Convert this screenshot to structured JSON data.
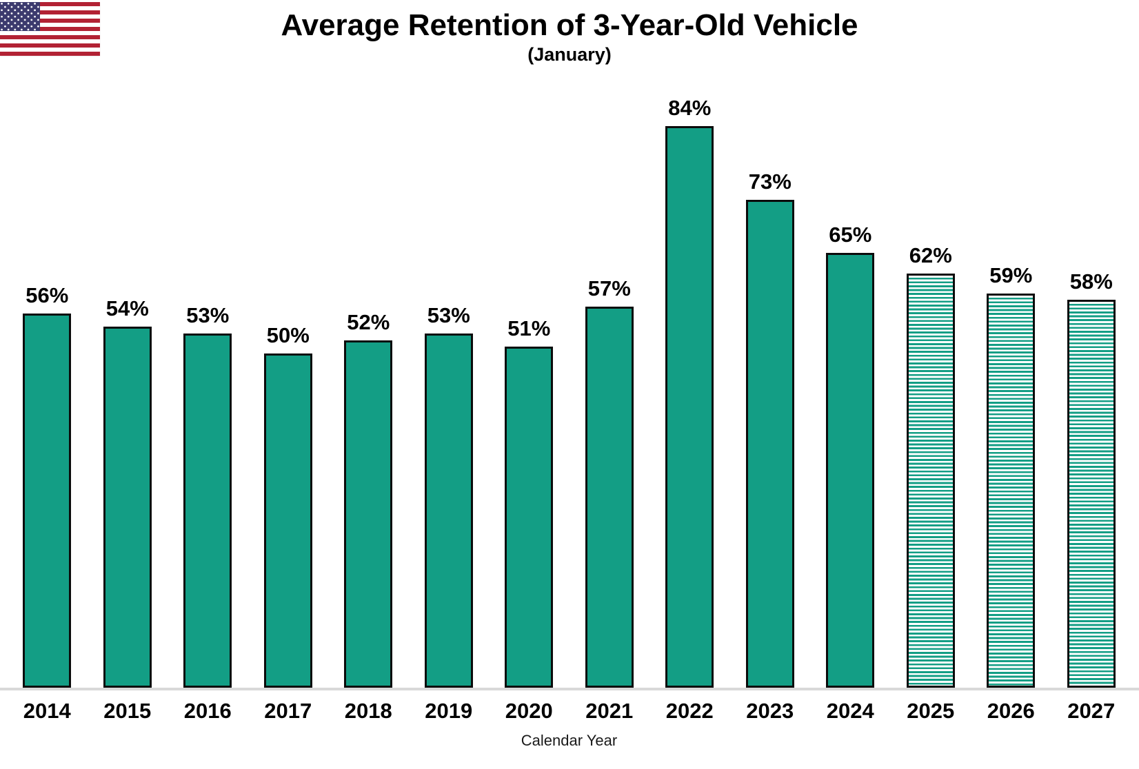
{
  "title": "Average Retention of 3-Year-Old Vehicle",
  "subtitle": "(January)",
  "flag": {
    "name": "us-flag"
  },
  "colors": {
    "bar_teal": "#139E85",
    "bar_border": "#0B0B0B",
    "axis_line": "#D9D9D9",
    "flag_red": "#B22234",
    "flag_blue": "#3C3B6E",
    "text": "#000000"
  },
  "chart_data": {
    "type": "bar",
    "title": "Average Retention of 3-Year-Old Vehicle",
    "subtitle": "(January)",
    "xlabel": "Calendar Year",
    "ylabel": "",
    "categories": [
      "2014",
      "2015",
      "2016",
      "2017",
      "2018",
      "2019",
      "2020",
      "2021",
      "2022",
      "2023",
      "2024",
      "2025",
      "2026",
      "2027"
    ],
    "values": [
      56,
      54,
      53,
      50,
      52,
      53,
      51,
      57,
      84,
      73,
      65,
      62,
      59,
      58
    ],
    "labels": [
      "56%",
      "54%",
      "53%",
      "50%",
      "52%",
      "53%",
      "51%",
      "57%",
      "84%",
      "73%",
      "65%",
      "62%",
      "59%",
      "58%"
    ],
    "forecast": [
      false,
      false,
      false,
      false,
      false,
      false,
      false,
      false,
      false,
      false,
      false,
      true,
      true,
      true
    ],
    "forecast_style": "horizontal-stripes",
    "data_labels_position": "above-bars",
    "ylim": [
      0,
      90
    ],
    "grid": false,
    "legend": false,
    "y_axis_shown": false
  }
}
